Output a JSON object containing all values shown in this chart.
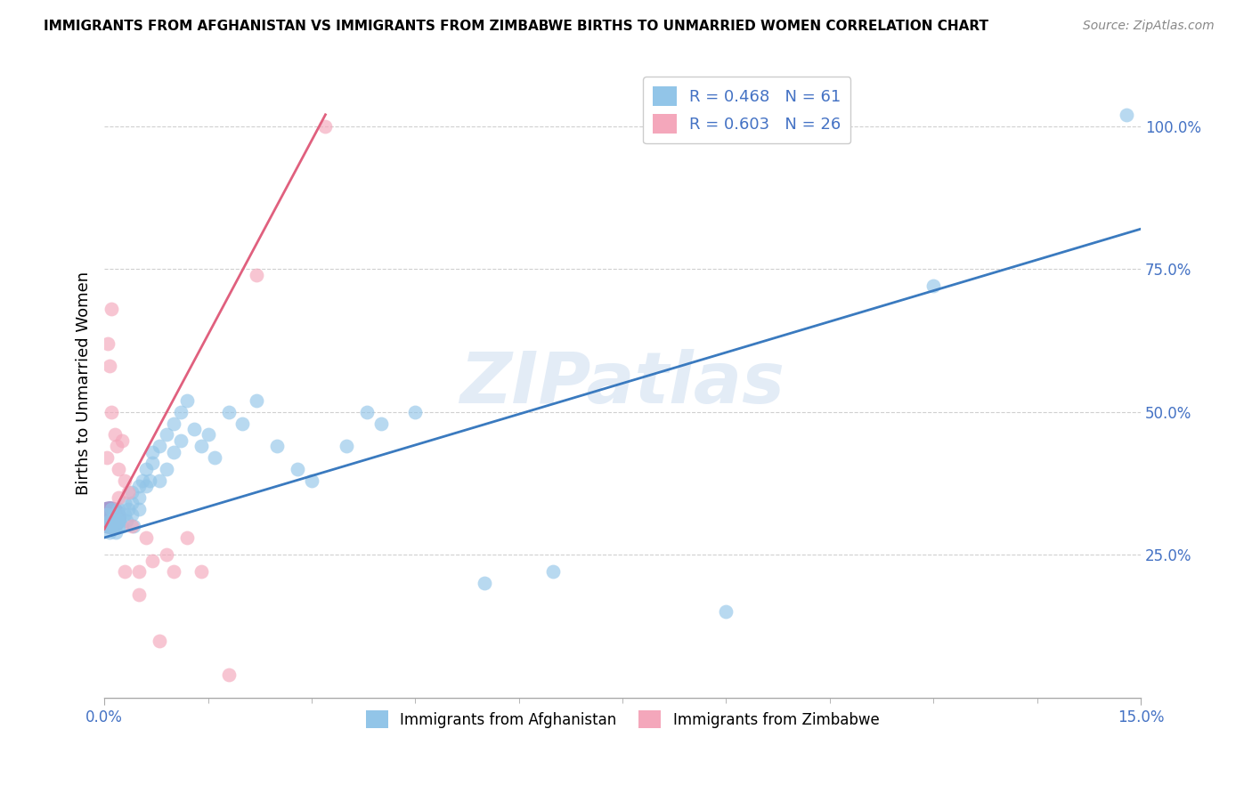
{
  "title": "IMMIGRANTS FROM AFGHANISTAN VS IMMIGRANTS FROM ZIMBABWE BIRTHS TO UNMARRIED WOMEN CORRELATION CHART",
  "source": "Source: ZipAtlas.com",
  "ylabel": "Births to Unmarried Women",
  "watermark": "ZIPatlas",
  "color_afghanistan": "#92c5e8",
  "color_zimbabwe": "#f4a7bb",
  "color_line_afghanistan": "#3a7abf",
  "color_line_zimbabwe": "#e0607e",
  "legend_label_af": "R = 0.468   N = 61",
  "legend_label_zim": "R = 0.603   N = 26",
  "legend_bottom_af": "Immigrants from Afghanistan",
  "legend_bottom_zim": "Immigrants from Zimbabwe",
  "xlim": [
    0.0,
    0.15
  ],
  "ylim": [
    0.0,
    1.1
  ],
  "ytick_positions": [
    0.25,
    0.5,
    0.75,
    1.0
  ],
  "ytick_labels": [
    "25.0%",
    "50.0%",
    "75.0%",
    "100.0%"
  ],
  "afghanistan_x": [
    0.0003,
    0.0005,
    0.0007,
    0.0008,
    0.001,
    0.001,
    0.0012,
    0.0014,
    0.0015,
    0.0016,
    0.0018,
    0.002,
    0.002,
    0.002,
    0.0022,
    0.0025,
    0.003,
    0.003,
    0.0032,
    0.0035,
    0.004,
    0.004,
    0.004,
    0.0042,
    0.005,
    0.005,
    0.005,
    0.0055,
    0.006,
    0.006,
    0.0065,
    0.007,
    0.007,
    0.008,
    0.008,
    0.009,
    0.009,
    0.01,
    0.01,
    0.011,
    0.011,
    0.012,
    0.013,
    0.014,
    0.015,
    0.016,
    0.018,
    0.02,
    0.022,
    0.025,
    0.028,
    0.03,
    0.035,
    0.038,
    0.04,
    0.045,
    0.055,
    0.065,
    0.09,
    0.12,
    0.148
  ],
  "afghanistan_y": [
    0.32,
    0.3,
    0.29,
    0.31,
    0.33,
    0.3,
    0.31,
    0.32,
    0.3,
    0.29,
    0.31,
    0.33,
    0.32,
    0.3,
    0.31,
    0.3,
    0.34,
    0.32,
    0.31,
    0.33,
    0.36,
    0.34,
    0.32,
    0.3,
    0.37,
    0.35,
    0.33,
    0.38,
    0.4,
    0.37,
    0.38,
    0.43,
    0.41,
    0.44,
    0.38,
    0.46,
    0.4,
    0.48,
    0.43,
    0.5,
    0.45,
    0.52,
    0.47,
    0.44,
    0.46,
    0.42,
    0.5,
    0.48,
    0.52,
    0.44,
    0.4,
    0.38,
    0.44,
    0.5,
    0.48,
    0.5,
    0.2,
    0.22,
    0.15,
    0.72,
    1.02
  ],
  "zimbabwe_x": [
    0.0003,
    0.0005,
    0.0008,
    0.001,
    0.001,
    0.0015,
    0.0018,
    0.002,
    0.002,
    0.0025,
    0.003,
    0.003,
    0.0035,
    0.004,
    0.005,
    0.005,
    0.006,
    0.007,
    0.008,
    0.009,
    0.01,
    0.012,
    0.014,
    0.018,
    0.022,
    0.032
  ],
  "zimbabwe_y": [
    0.42,
    0.62,
    0.58,
    0.68,
    0.5,
    0.46,
    0.44,
    0.4,
    0.35,
    0.45,
    0.38,
    0.22,
    0.36,
    0.3,
    0.22,
    0.18,
    0.28,
    0.24,
    0.1,
    0.25,
    0.22,
    0.28,
    0.22,
    0.04,
    0.74,
    1.0
  ],
  "line_af_x0": 0.0,
  "line_af_x1": 0.15,
  "line_af_y0": 0.28,
  "line_af_y1": 0.82,
  "line_zim_x0": 0.0,
  "line_zim_x1": 0.032,
  "line_zim_y0": 0.295,
  "line_zim_y1": 1.02
}
